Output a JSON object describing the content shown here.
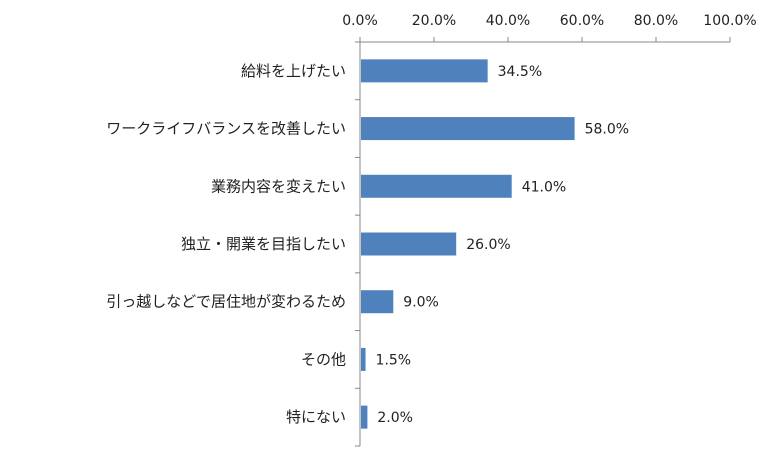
{
  "chart_data": {
    "type": "bar",
    "orientation": "horizontal",
    "categories": [
      "給料を上げたい",
      "ワークライフバランスを改善したい",
      "業務内容を変えたい",
      "独立・開業を目指したい",
      "引っ越しなどで居住地が変わるため",
      "その他",
      "特にない"
    ],
    "values": [
      34.5,
      58.0,
      41.0,
      26.0,
      9.0,
      1.5,
      2.0
    ],
    "data_labels": [
      "34.5%",
      "58.0%",
      "41.0%",
      "26.0%",
      "9.0%",
      "1.5%",
      "2.0%"
    ],
    "x_ticks": [
      "0.0%",
      "20.0%",
      "40.0%",
      "60.0%",
      "80.0%",
      "100.0%"
    ],
    "xlim": [
      0,
      100
    ],
    "x_axis_position": "top",
    "grid": false,
    "bar_color": "#4F81BD"
  }
}
